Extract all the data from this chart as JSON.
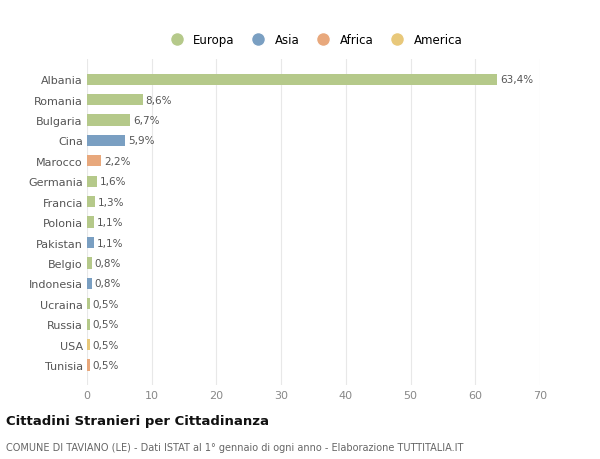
{
  "categories": [
    "Albania",
    "Romania",
    "Bulgaria",
    "Cina",
    "Marocco",
    "Germania",
    "Francia",
    "Polonia",
    "Pakistan",
    "Belgio",
    "Indonesia",
    "Ucraina",
    "Russia",
    "USA",
    "Tunisia"
  ],
  "values": [
    63.4,
    8.6,
    6.7,
    5.9,
    2.2,
    1.6,
    1.3,
    1.1,
    1.1,
    0.8,
    0.8,
    0.5,
    0.5,
    0.5,
    0.5
  ],
  "labels": [
    "63,4%",
    "8,6%",
    "6,7%",
    "5,9%",
    "2,2%",
    "1,6%",
    "1,3%",
    "1,1%",
    "1,1%",
    "0,8%",
    "0,8%",
    "0,5%",
    "0,5%",
    "0,5%",
    "0,5%"
  ],
  "colors": [
    "#b5c98a",
    "#b5c98a",
    "#b5c98a",
    "#7a9fc2",
    "#e8a87c",
    "#b5c98a",
    "#b5c98a",
    "#b5c98a",
    "#7a9fc2",
    "#b5c98a",
    "#7a9fc2",
    "#b5c98a",
    "#b5c98a",
    "#e8c87a",
    "#e8a87c"
  ],
  "legend_labels": [
    "Europa",
    "Asia",
    "Africa",
    "America"
  ],
  "legend_colors": [
    "#b5c98a",
    "#7a9fc2",
    "#e8a87c",
    "#e8c87a"
  ],
  "title": "Cittadini Stranieri per Cittadinanza",
  "subtitle": "COMUNE DI TAVIANO (LE) - Dati ISTAT al 1° gennaio di ogni anno - Elaborazione TUTTITALIA.IT",
  "xlim": [
    0,
    70
  ],
  "xticks": [
    0,
    10,
    20,
    30,
    40,
    50,
    60,
    70
  ],
  "bg_color": "#ffffff",
  "grid_color": "#e8e8e8"
}
